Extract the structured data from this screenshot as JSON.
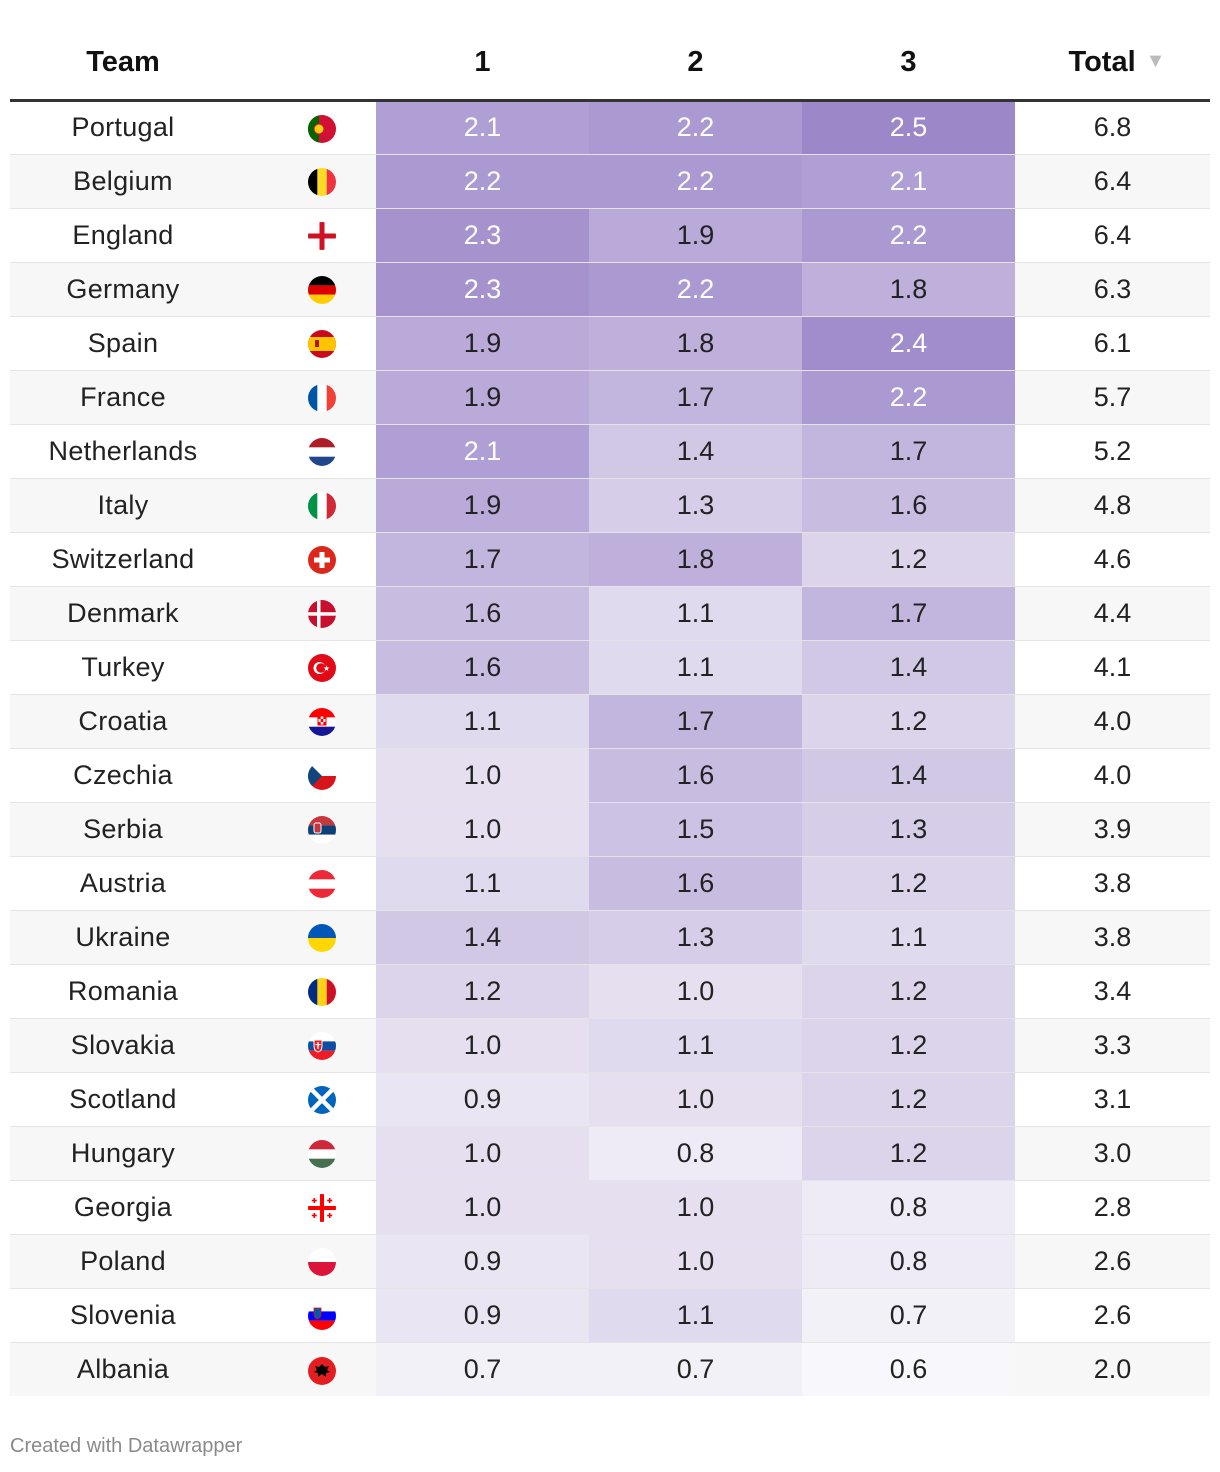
{
  "chart_data": {
    "type": "table",
    "columns": [
      "Team",
      "1",
      "2",
      "3",
      "Total"
    ],
    "sorted_by": "Total",
    "rows": [
      {
        "team": "Portugal",
        "flag": "portugal-flag-icon",
        "v": [
          2.1,
          2.2,
          2.5
        ],
        "total": 6.8
      },
      {
        "team": "Belgium",
        "flag": "belgium-flag-icon",
        "v": [
          2.2,
          2.2,
          2.1
        ],
        "total": 6.4
      },
      {
        "team": "England",
        "flag": "england-flag-icon",
        "v": [
          2.3,
          1.9,
          2.2
        ],
        "total": 6.4
      },
      {
        "team": "Germany",
        "flag": "germany-flag-icon",
        "v": [
          2.3,
          2.2,
          1.8
        ],
        "total": 6.3
      },
      {
        "team": "Spain",
        "flag": "spain-flag-icon",
        "v": [
          1.9,
          1.8,
          2.4
        ],
        "total": 6.1
      },
      {
        "team": "France",
        "flag": "france-flag-icon",
        "v": [
          1.9,
          1.7,
          2.2
        ],
        "total": 5.7
      },
      {
        "team": "Netherlands",
        "flag": "netherlands-flag-icon",
        "v": [
          2.1,
          1.4,
          1.7
        ],
        "total": 5.2
      },
      {
        "team": "Italy",
        "flag": "italy-flag-icon",
        "v": [
          1.9,
          1.3,
          1.6
        ],
        "total": 4.8
      },
      {
        "team": "Switzerland",
        "flag": "switzerland-flag-icon",
        "v": [
          1.7,
          1.8,
          1.2
        ],
        "total": 4.6
      },
      {
        "team": "Denmark",
        "flag": "denmark-flag-icon",
        "v": [
          1.6,
          1.1,
          1.7
        ],
        "total": 4.4
      },
      {
        "team": "Turkey",
        "flag": "turkey-flag-icon",
        "v": [
          1.6,
          1.1,
          1.4
        ],
        "total": 4.1
      },
      {
        "team": "Croatia",
        "flag": "croatia-flag-icon",
        "v": [
          1.1,
          1.7,
          1.2
        ],
        "total": 4.0
      },
      {
        "team": "Czechia",
        "flag": "czechia-flag-icon",
        "v": [
          1.0,
          1.6,
          1.4
        ],
        "total": 4.0
      },
      {
        "team": "Serbia",
        "flag": "serbia-flag-icon",
        "v": [
          1.0,
          1.5,
          1.3
        ],
        "total": 3.9
      },
      {
        "team": "Austria",
        "flag": "austria-flag-icon",
        "v": [
          1.1,
          1.6,
          1.2
        ],
        "total": 3.8
      },
      {
        "team": "Ukraine",
        "flag": "ukraine-flag-icon",
        "v": [
          1.4,
          1.3,
          1.1
        ],
        "total": 3.8
      },
      {
        "team": "Romania",
        "flag": "romania-flag-icon",
        "v": [
          1.2,
          1.0,
          1.2
        ],
        "total": 3.4
      },
      {
        "team": "Slovakia",
        "flag": "slovakia-flag-icon",
        "v": [
          1.0,
          1.1,
          1.2
        ],
        "total": 3.3
      },
      {
        "team": "Scotland",
        "flag": "scotland-flag-icon",
        "v": [
          0.9,
          1.0,
          1.2
        ],
        "total": 3.1
      },
      {
        "team": "Hungary",
        "flag": "hungary-flag-icon",
        "v": [
          1.0,
          0.8,
          1.2
        ],
        "total": 3.0
      },
      {
        "team": "Georgia",
        "flag": "georgia-flag-icon",
        "v": [
          1.0,
          1.0,
          0.8
        ],
        "total": 2.8
      },
      {
        "team": "Poland",
        "flag": "poland-flag-icon",
        "v": [
          0.9,
          1.0,
          0.8
        ],
        "total": 2.6
      },
      {
        "team": "Slovenia",
        "flag": "slovenia-flag-icon",
        "v": [
          0.9,
          1.1,
          0.7
        ],
        "total": 2.6
      },
      {
        "team": "Albania",
        "flag": "albania-flag-icon",
        "v": [
          0.7,
          0.7,
          0.6
        ],
        "total": 2.0
      }
    ],
    "color_scale": {
      "min": 0.6,
      "max": 2.5,
      "low_color": "#f8f7fb",
      "high_color": "#9c87c9"
    }
  },
  "header": {
    "team": "Team",
    "c1": "1",
    "c2": "2",
    "c3": "3",
    "total": "Total",
    "sort_icon": "sort-desc-icon"
  },
  "footer": {
    "credit": "Created with Datawrapper"
  }
}
